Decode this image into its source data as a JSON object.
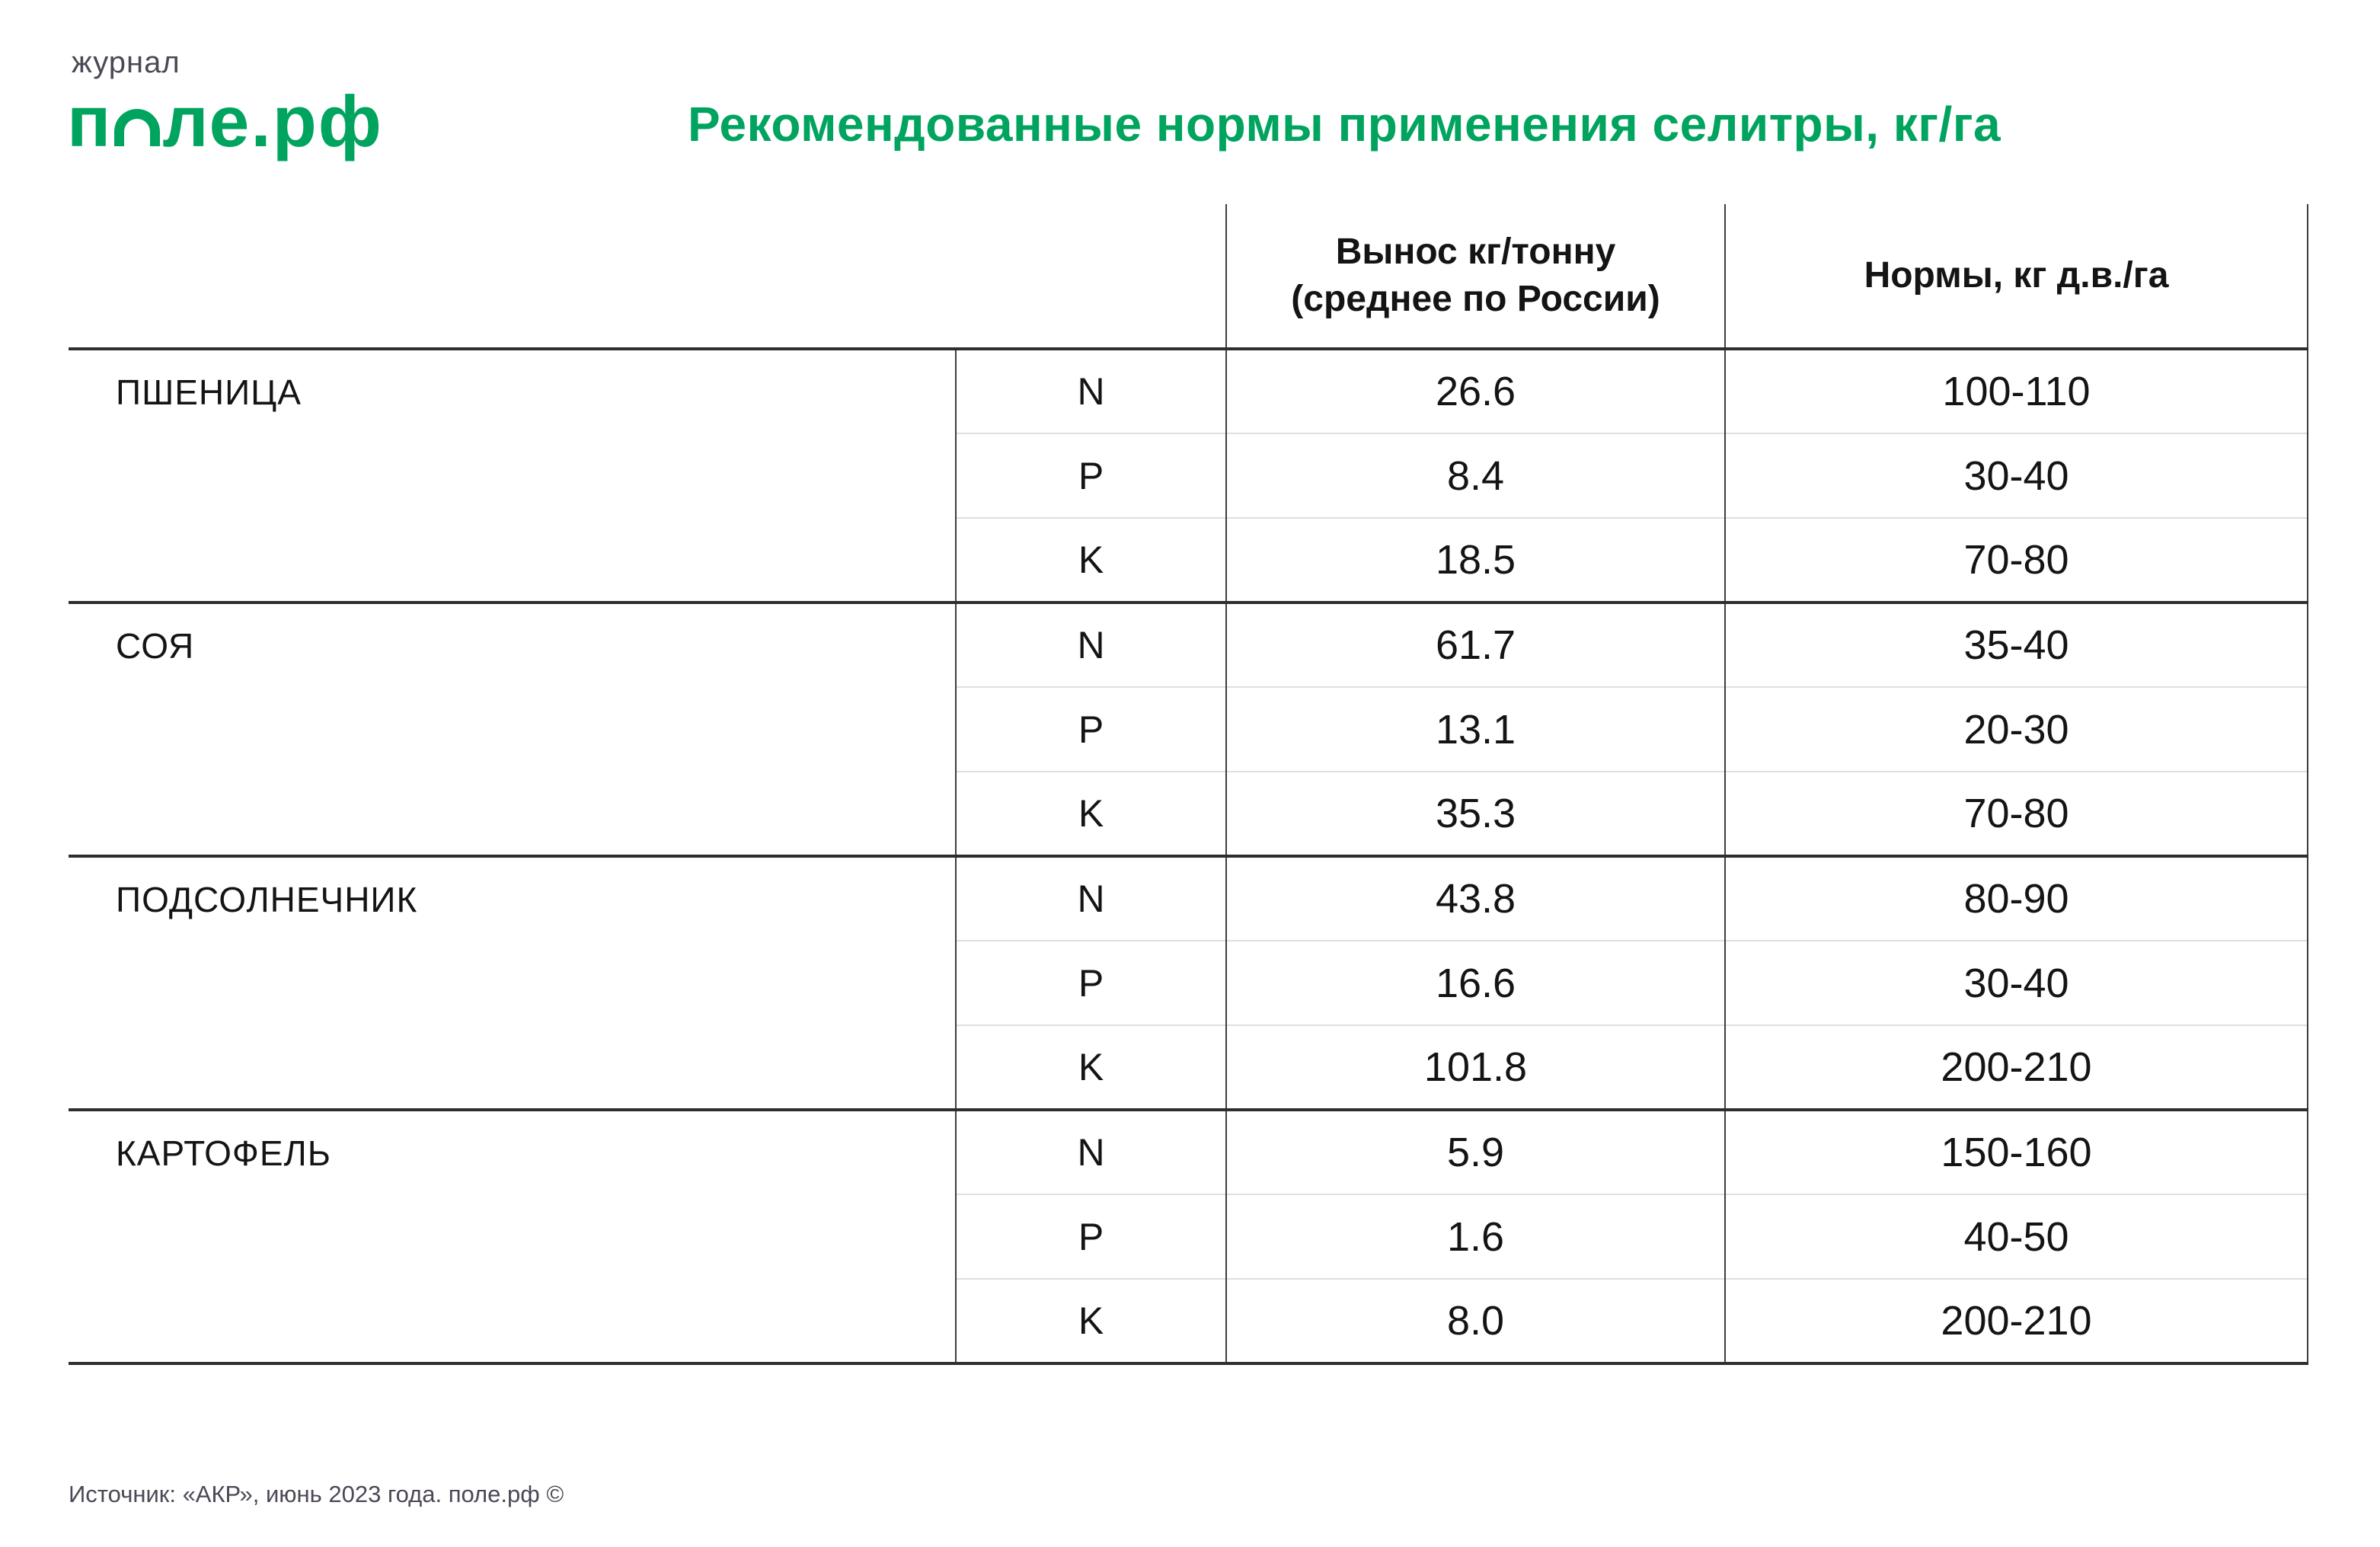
{
  "logo": {
    "kicker": "журнал",
    "brand_prefix": "п",
    "brand_suffix": "ле.рф"
  },
  "title": "Рекомендованные нормы применения селитры, кг/га",
  "colors": {
    "brand_green": "#00a45f",
    "muted_text": "#4d4756",
    "table_text": "#141414",
    "heavy_rule": "#2e2e2e",
    "light_rule": "#dfdfdf"
  },
  "table": {
    "header": {
      "removal": "Вынос кг/тонну\n(среднее по России)",
      "norms": "Нормы, кг д.в./га"
    },
    "groups": [
      {
        "crop": "ПШЕНИЦА",
        "rows": [
          {
            "element": "N",
            "removal": "26.6",
            "norm": "100-110"
          },
          {
            "element": "P",
            "removal": "8.4",
            "norm": "30-40"
          },
          {
            "element": "K",
            "removal": "18.5",
            "norm": "70-80"
          }
        ]
      },
      {
        "crop": "СОЯ",
        "rows": [
          {
            "element": "N",
            "removal": "61.7",
            "norm": "35-40"
          },
          {
            "element": "P",
            "removal": "13.1",
            "norm": "20-30"
          },
          {
            "element": "K",
            "removal": "35.3",
            "norm": "70-80"
          }
        ]
      },
      {
        "crop": "ПОДСОЛНЕЧНИК",
        "rows": [
          {
            "element": "N",
            "removal": "43.8",
            "norm": "80-90"
          },
          {
            "element": "P",
            "removal": "16.6",
            "norm": "30-40"
          },
          {
            "element": "K",
            "removal": "101.8",
            "norm": "200-210"
          }
        ]
      },
      {
        "crop": "КАРТОФЕЛЬ",
        "rows": [
          {
            "element": "N",
            "removal": "5.9",
            "norm": "150-160"
          },
          {
            "element": "P",
            "removal": "1.6",
            "norm": "40-50"
          },
          {
            "element": "K",
            "removal": "8.0",
            "norm": "200-210"
          }
        ]
      }
    ]
  },
  "footer": {
    "source": "Источник: «АКР», июнь 2023 года. поле.рф ©"
  },
  "chart_data": {
    "type": "table",
    "title": "Рекомендованные нормы применения селитры, кг/га",
    "columns": [
      "",
      "",
      "Вынос кг/тонну (среднее по России)",
      "Нормы, кг д.в./га"
    ],
    "rows": [
      [
        "ПШЕНИЦА",
        "N",
        26.6,
        "100-110"
      ],
      [
        "ПШЕНИЦА",
        "P",
        8.4,
        "30-40"
      ],
      [
        "ПШЕНИЦА",
        "K",
        18.5,
        "70-80"
      ],
      [
        "СОЯ",
        "N",
        61.7,
        "35-40"
      ],
      [
        "СОЯ",
        "P",
        13.1,
        "20-30"
      ],
      [
        "СОЯ",
        "K",
        35.3,
        "70-80"
      ],
      [
        "ПОДСОЛНЕЧНИК",
        "N",
        43.8,
        "80-90"
      ],
      [
        "ПОДСОЛНЕЧНИК",
        "P",
        16.6,
        "30-40"
      ],
      [
        "ПОДСОЛНЕЧНИК",
        "K",
        101.8,
        "200-210"
      ],
      [
        "КАРТОФЕЛЬ",
        "N",
        5.9,
        "150-160"
      ],
      [
        "КАРТОФЕЛЬ",
        "P",
        1.6,
        "40-50"
      ],
      [
        "КАРТОФЕЛЬ",
        "K",
        8.0,
        "200-210"
      ]
    ],
    "source": "Источник: «АКР», июнь 2023 года. поле.рф ©"
  }
}
